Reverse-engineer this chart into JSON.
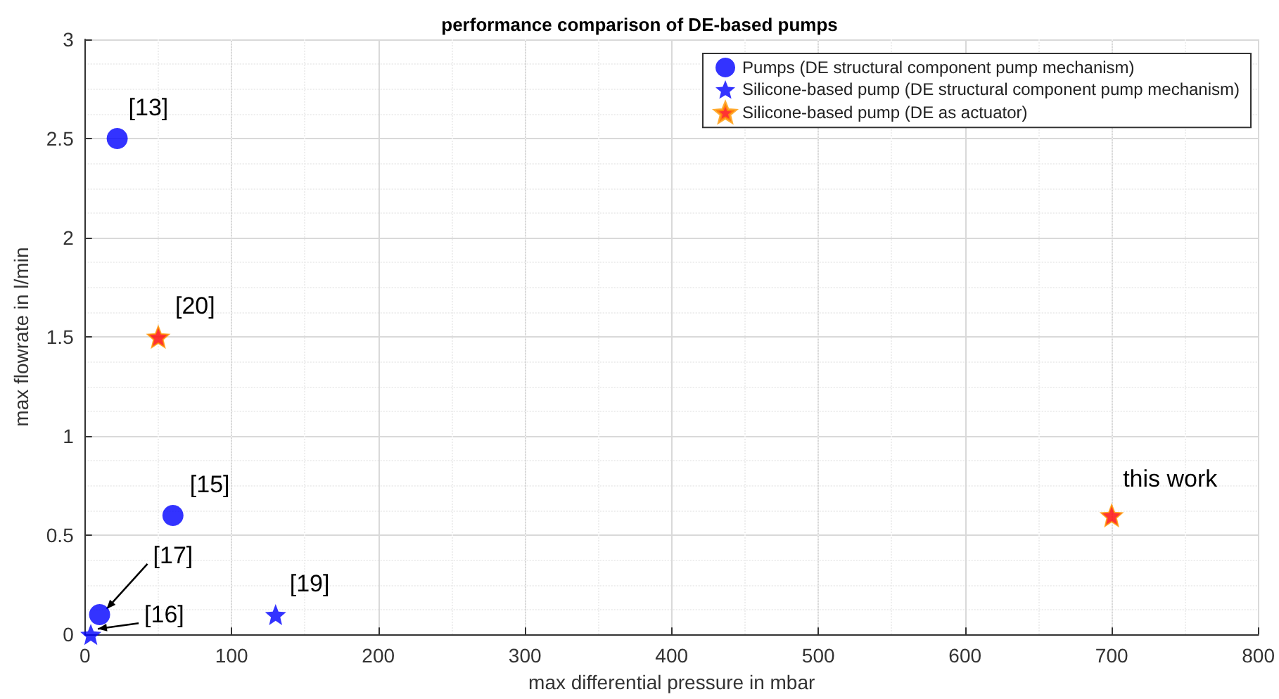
{
  "chart_data": {
    "type": "scatter",
    "title": "performance comparison of DE-based pumps",
    "xlabel": "max differential pressure in mbar",
    "ylabel": "max flowrate in l/min",
    "series": [
      {
        "name": "Pumps (DE structural component pump mechanism)",
        "color": "#0000ff",
        "marker": "circle",
        "x": [
          22,
          60,
          10
        ],
        "values": [
          2.5,
          0.6,
          0.1
        ]
      },
      {
        "name": "Silicone-based pump (DE structural component pump mechanism)",
        "color": "#0000ff",
        "marker": "star",
        "x": [
          130,
          4
        ],
        "values": [
          0.1,
          0
        ]
      },
      {
        "name": "Silicone-based pump (DE as actuator)",
        "color": "#ff0000",
        "marker": "star",
        "x": [
          50,
          700
        ],
        "values": [
          1.5,
          0.6
        ]
      }
    ],
    "annotations": [
      {
        "text": "[13]",
        "x": 22,
        "y": 2.5
      },
      {
        "text": "[20]",
        "x": 50,
        "y": 1.5
      },
      {
        "text": "[15]",
        "x": 60,
        "y": 0.6
      },
      {
        "text": "[17]",
        "x": 10,
        "y": 0.1
      },
      {
        "text": "[16]",
        "x": 4,
        "y": 0
      },
      {
        "text": "[19]",
        "x": 130,
        "y": 0.1
      },
      {
        "text": "this work",
        "x": 700,
        "y": 0.6
      }
    ],
    "xlim": [
      0,
      800
    ],
    "xticks": [
      0,
      100,
      200,
      300,
      400,
      500,
      600,
      700,
      800
    ],
    "ylim": [
      0,
      3
    ],
    "yticks": [
      0,
      0.5,
      1,
      1.5,
      2,
      2.5,
      3
    ],
    "grid": true,
    "legend": "top right"
  }
}
